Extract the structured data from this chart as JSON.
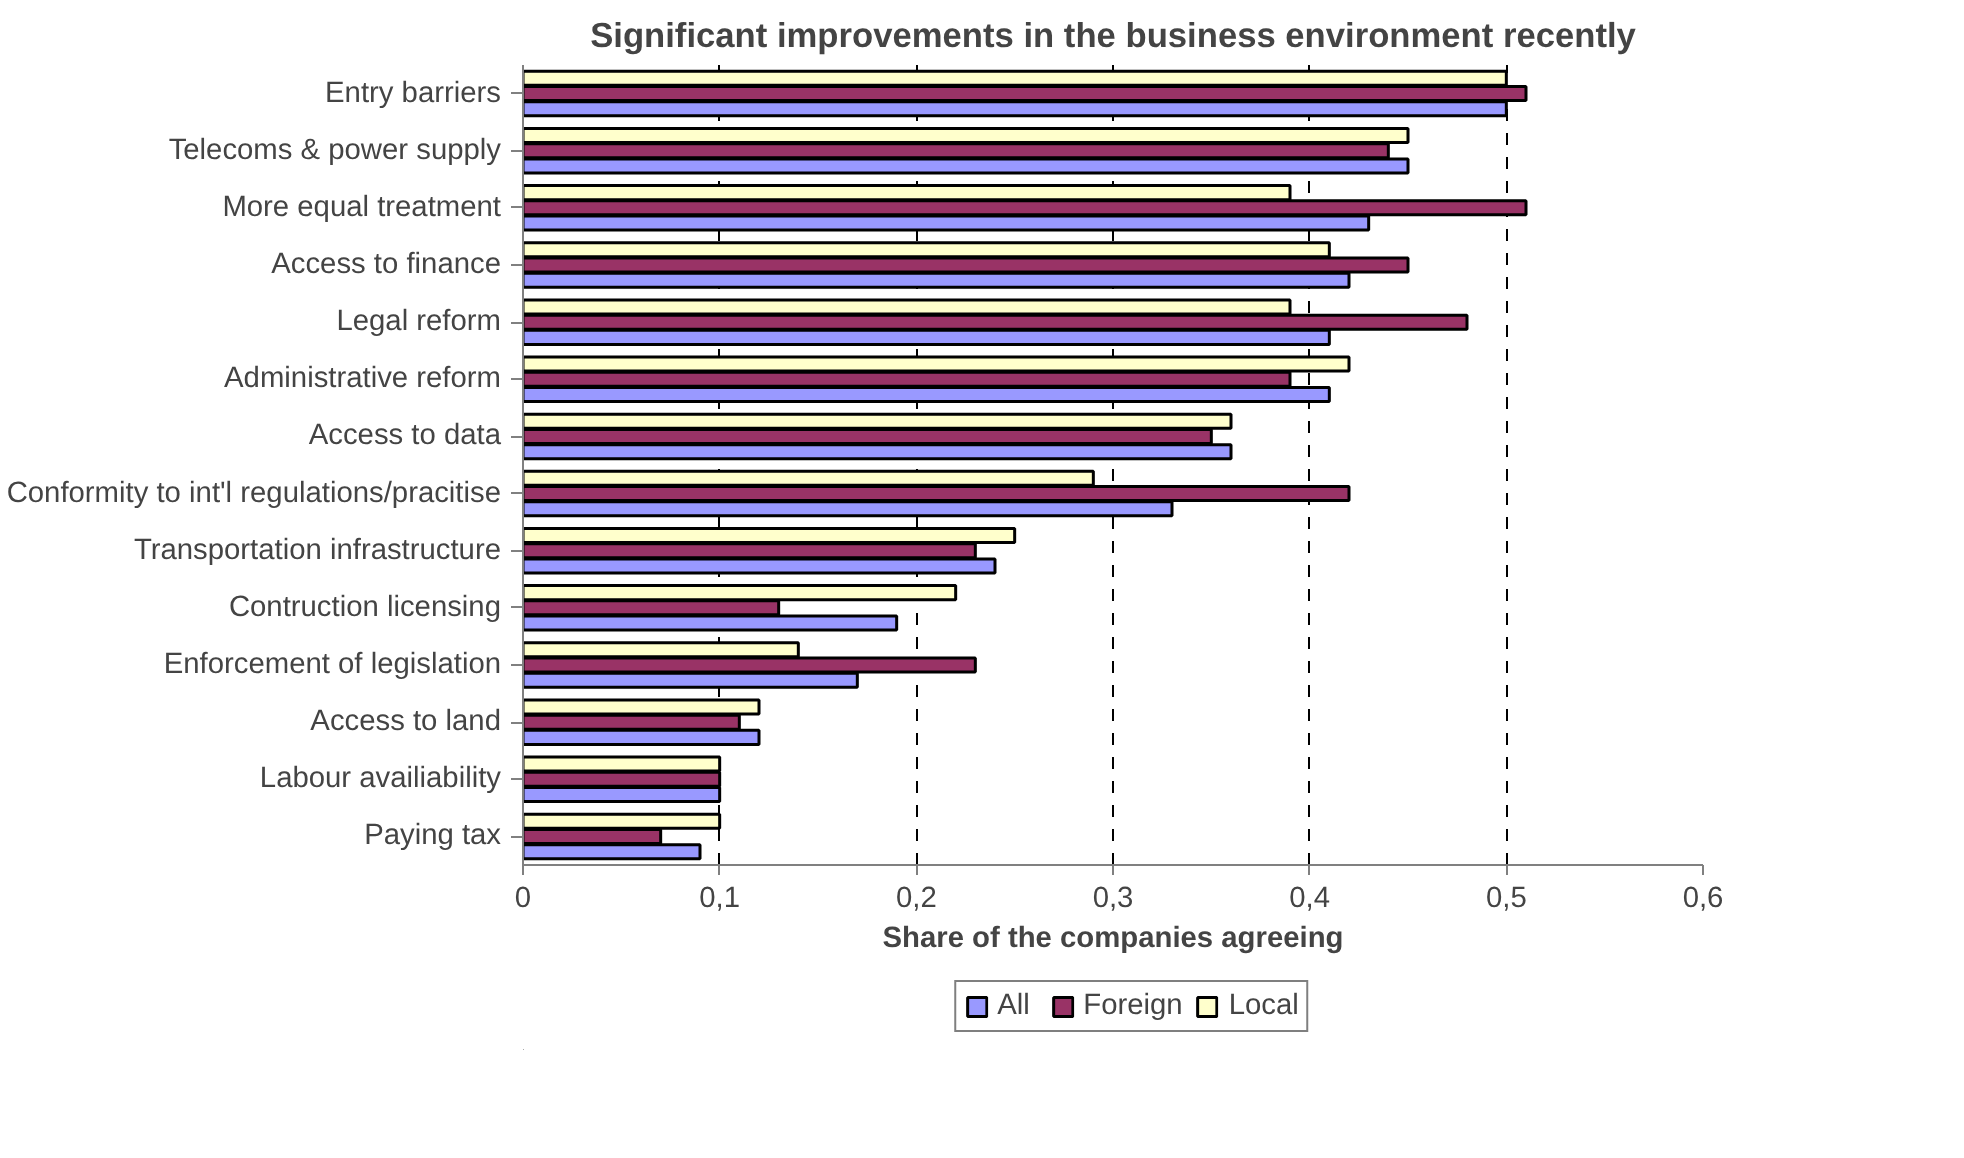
{
  "chart_data": {
    "type": "bar",
    "orientation": "horizontal",
    "title": "Significant improvements in the business environment recently",
    "xlabel": "Share of the companies agreeing",
    "categories": [
      "Entry barriers",
      "Telecoms & power supply",
      "More equal treatment",
      "Access to finance",
      "Legal reform",
      "Administrative reform",
      "Access to data",
      "Conformity to int'l regulations/pracitise",
      "Transportation infrastructure",
      "Contruction licensing",
      "Enforcement of legislation",
      "Access to land",
      "Labour availiability",
      "Paying tax"
    ],
    "series": [
      {
        "name": "All",
        "color": "#9999ff",
        "values": [
          0.5,
          0.45,
          0.43,
          0.42,
          0.41,
          0.41,
          0.36,
          0.33,
          0.24,
          0.19,
          0.17,
          0.12,
          0.1,
          0.09
        ]
      },
      {
        "name": "Foreign",
        "color": "#993366",
        "values": [
          0.51,
          0.44,
          0.51,
          0.45,
          0.48,
          0.39,
          0.35,
          0.42,
          0.23,
          0.13,
          0.23,
          0.11,
          0.1,
          0.07
        ]
      },
      {
        "name": "Local",
        "color": "#ffffcc",
        "values": [
          0.5,
          0.45,
          0.39,
          0.41,
          0.39,
          0.42,
          0.36,
          0.29,
          0.25,
          0.22,
          0.14,
          0.12,
          0.1,
          0.1
        ]
      }
    ],
    "xlim": [
      0,
      0.6
    ],
    "xticks": [
      {
        "value": 0,
        "label": "0"
      },
      {
        "value": 0.1,
        "label": "0,1"
      },
      {
        "value": 0.2,
        "label": "0,2"
      },
      {
        "value": 0.3,
        "label": "0,3"
      },
      {
        "value": 0.4,
        "label": "0,4"
      },
      {
        "value": 0.5,
        "label": "0,5"
      },
      {
        "value": 0.6,
        "label": "0,6"
      }
    ],
    "grid": "x",
    "legend": "bottom"
  }
}
